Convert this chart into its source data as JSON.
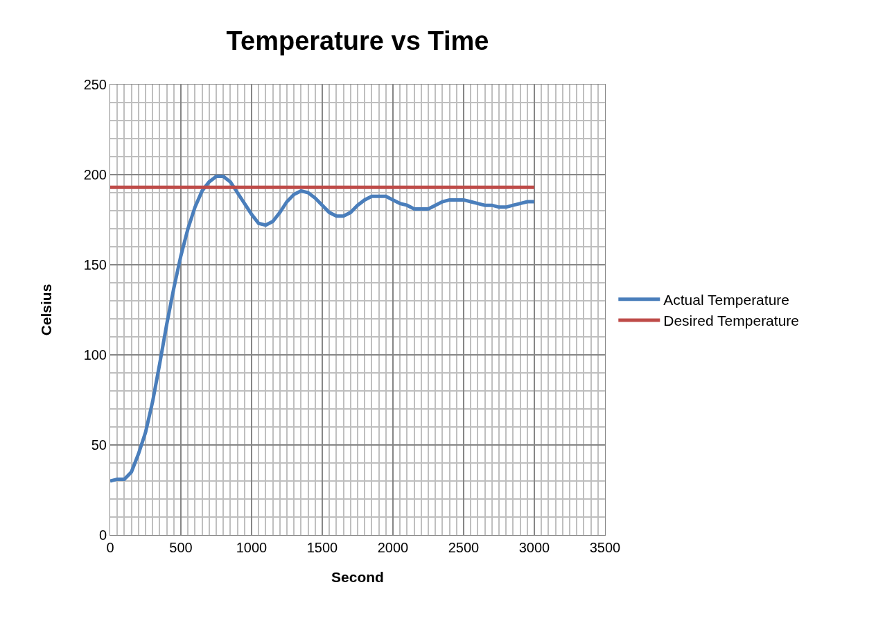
{
  "chart_data": {
    "type": "line",
    "title": "Temperature vs Time",
    "xlabel": "Second",
    "ylabel": "Celsius",
    "xlim": [
      0,
      3500
    ],
    "xticks": [
      0,
      500,
      1000,
      1500,
      2000,
      2500,
      3000,
      3500
    ],
    "ylim": [
      0,
      250
    ],
    "yticks": [
      0,
      50,
      100,
      150,
      200,
      250
    ],
    "grid": true,
    "legend": "right",
    "marker": "none",
    "line_style": "solid",
    "series": [
      {
        "name": "Actual Temperature",
        "color": "#4a7ebb",
        "x": [
          0,
          50,
          100,
          150,
          200,
          250,
          300,
          350,
          400,
          450,
          500,
          550,
          600,
          650,
          700,
          750,
          800,
          850,
          900,
          950,
          1000,
          1050,
          1100,
          1150,
          1200,
          1250,
          1300,
          1350,
          1400,
          1450,
          1500,
          1550,
          1600,
          1650,
          1700,
          1750,
          1800,
          1850,
          1900,
          1950,
          2000,
          2050,
          2100,
          2150,
          2200,
          2250,
          2300,
          2350,
          2400,
          2450,
          2500,
          2550,
          2600,
          2650,
          2700,
          2750,
          2800,
          2850,
          2900,
          2950,
          3000
        ],
        "values": [
          30,
          31,
          31,
          35,
          45,
          57,
          74,
          95,
          117,
          137,
          155,
          170,
          182,
          191,
          196,
          199,
          199,
          196,
          190,
          184,
          178,
          173,
          172,
          174,
          179,
          185,
          189,
          191,
          190,
          187,
          183,
          179,
          177,
          177,
          179,
          183,
          186,
          188,
          188,
          188,
          186,
          184,
          183,
          181,
          181,
          181,
          183,
          185,
          186,
          186,
          186,
          185,
          184,
          183,
          183,
          182,
          182,
          183,
          184,
          185,
          185
        ]
      },
      {
        "name": "Desired Temperature",
        "color": "#be4b48",
        "x": [
          0,
          3000
        ],
        "values": [
          193,
          193
        ]
      }
    ]
  }
}
